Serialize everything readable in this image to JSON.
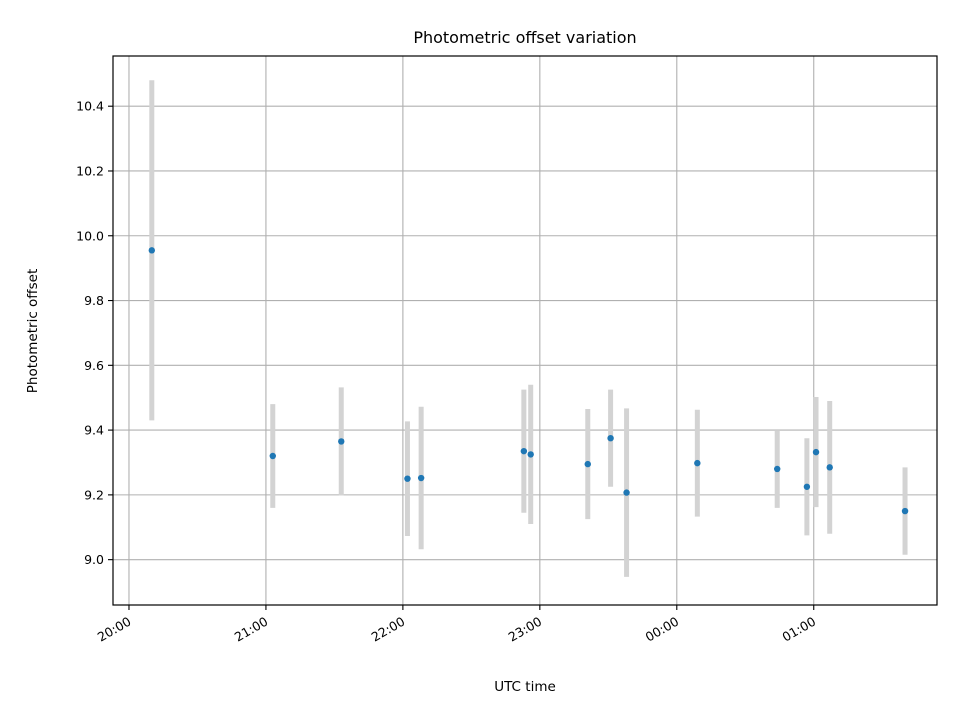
{
  "chart_data": {
    "type": "scatter",
    "title": "Photometric offset variation",
    "xlabel": "UTC time",
    "ylabel": "Photometric offset",
    "x_axis": {
      "type": "time",
      "start": "20:00",
      "ticks": [
        "20:00",
        "21:00",
        "22:00",
        "23:00",
        "00:00",
        "01:00"
      ],
      "xlim": [
        "19:53",
        "01:54"
      ]
    },
    "y_axis": {
      "ylim": [
        8.86,
        10.555
      ],
      "ticks": [
        9.0,
        9.2,
        9.4,
        9.6,
        9.8,
        10.0,
        10.2,
        10.4
      ],
      "tick_labels": [
        "9.0",
        "9.2",
        "9.4",
        "9.6",
        "9.8",
        "10.0",
        "10.2",
        "10.4"
      ]
    },
    "grid": true,
    "point_color": "#1f77b4",
    "errorbar_color": "#d3d3d3",
    "points": [
      {
        "time": "20:10",
        "y": 9.955,
        "err": 0.525
      },
      {
        "time": "21:03",
        "y": 9.32,
        "err": 0.16
      },
      {
        "time": "21:33",
        "y": 9.365,
        "err": 0.167
      },
      {
        "time": "22:02",
        "y": 9.25,
        "err": 0.177
      },
      {
        "time": "22:08",
        "y": 9.252,
        "err": 0.22
      },
      {
        "time": "22:53",
        "y": 9.335,
        "err": 0.19
      },
      {
        "time": "22:56",
        "y": 9.325,
        "err": 0.215
      },
      {
        "time": "23:21",
        "y": 9.295,
        "err": 0.17
      },
      {
        "time": "23:31",
        "y": 9.375,
        "err": 0.15
      },
      {
        "time": "23:38",
        "y": 9.207,
        "err": 0.26
      },
      {
        "time": "00:09",
        "y": 9.298,
        "err": 0.165
      },
      {
        "time": "00:44",
        "y": 9.28,
        "err": 0.12
      },
      {
        "time": "00:57",
        "y": 9.225,
        "err": 0.15
      },
      {
        "time": "01:01",
        "y": 9.332,
        "err": 0.17
      },
      {
        "time": "01:07",
        "y": 9.285,
        "err": 0.205
      },
      {
        "time": "01:40",
        "y": 9.15,
        "err": 0.135
      }
    ]
  }
}
